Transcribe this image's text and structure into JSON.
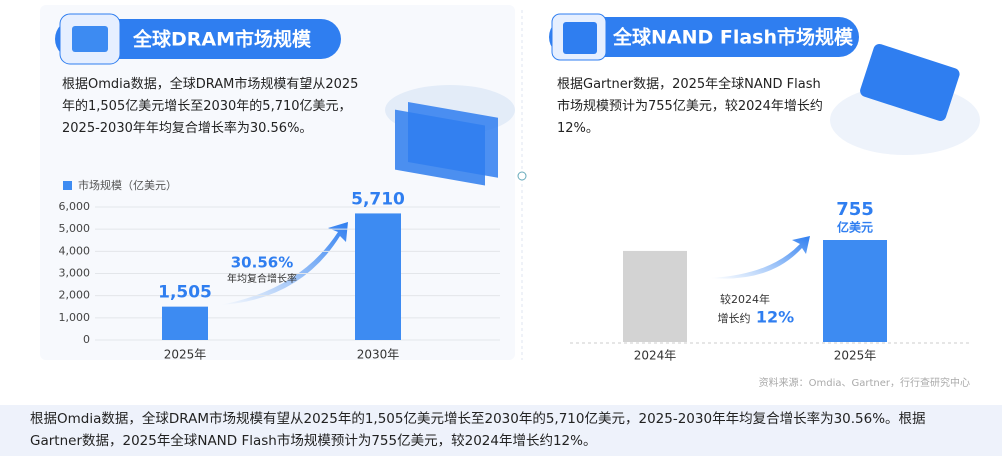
{
  "chart_data": [
    {
      "type": "bar",
      "title": "全球DRAM市场规模",
      "description": "根据Omdia数据，全球DRAM市场规模有望从2025年的1,505亿美元增长至2030年的5,710亿美元，2025-2030年年均复合增长率为30.56%。",
      "categories": [
        "2025年",
        "2030年"
      ],
      "series": [
        {
          "name": "市场规模（亿美元）",
          "color": "#3d8bf2",
          "values": [
            1505,
            5710
          ],
          "value_labels": [
            "1,505",
            "5,710"
          ]
        }
      ],
      "ylim": [
        0,
        6000
      ],
      "yticks": [
        0,
        {
          "value": 1000,
          "label": "1,000"
        },
        {
          "value": 2000,
          "label": "2,000"
        },
        {
          "value": 3000,
          "label": "3,000"
        },
        {
          "value": 4000,
          "label": "4,000"
        },
        {
          "value": 5000,
          "label": "5,000"
        },
        {
          "value": 6000,
          "label": "6,000"
        }
      ],
      "grid": true,
      "annotations": [
        "30.56%",
        "年均复合增长率"
      ]
    },
    {
      "type": "bar",
      "title": "全球NAND Flash市场规模",
      "description": "根据Gartner数据，2025年全球NAND Flash市场规模预计为755亿美元，较2024年增长约12%。",
      "categories": [
        "2024年",
        "2025年"
      ],
      "values": [
        674,
        755
      ],
      "value_labels": [
        null,
        "755"
      ],
      "colors": [
        "#d3d3d3",
        "#3d8bf2"
      ],
      "unit": "亿美元",
      "annotations": [
        "较2024年",
        "增长约",
        "12%"
      ]
    }
  ],
  "source": "资料来源：Omdia、Gartner，行行查研究中心",
  "caption": "根据Omdia数据，全球DRAM市场规模有望从2025年的1,505亿美元增长至2030年的5,710亿美元，2025-2030年年均复合增长率为30.56%。根据Gartner数据，2025年全球NAND Flash市场规模预计为755亿美元，较2024年增长约12%。"
}
